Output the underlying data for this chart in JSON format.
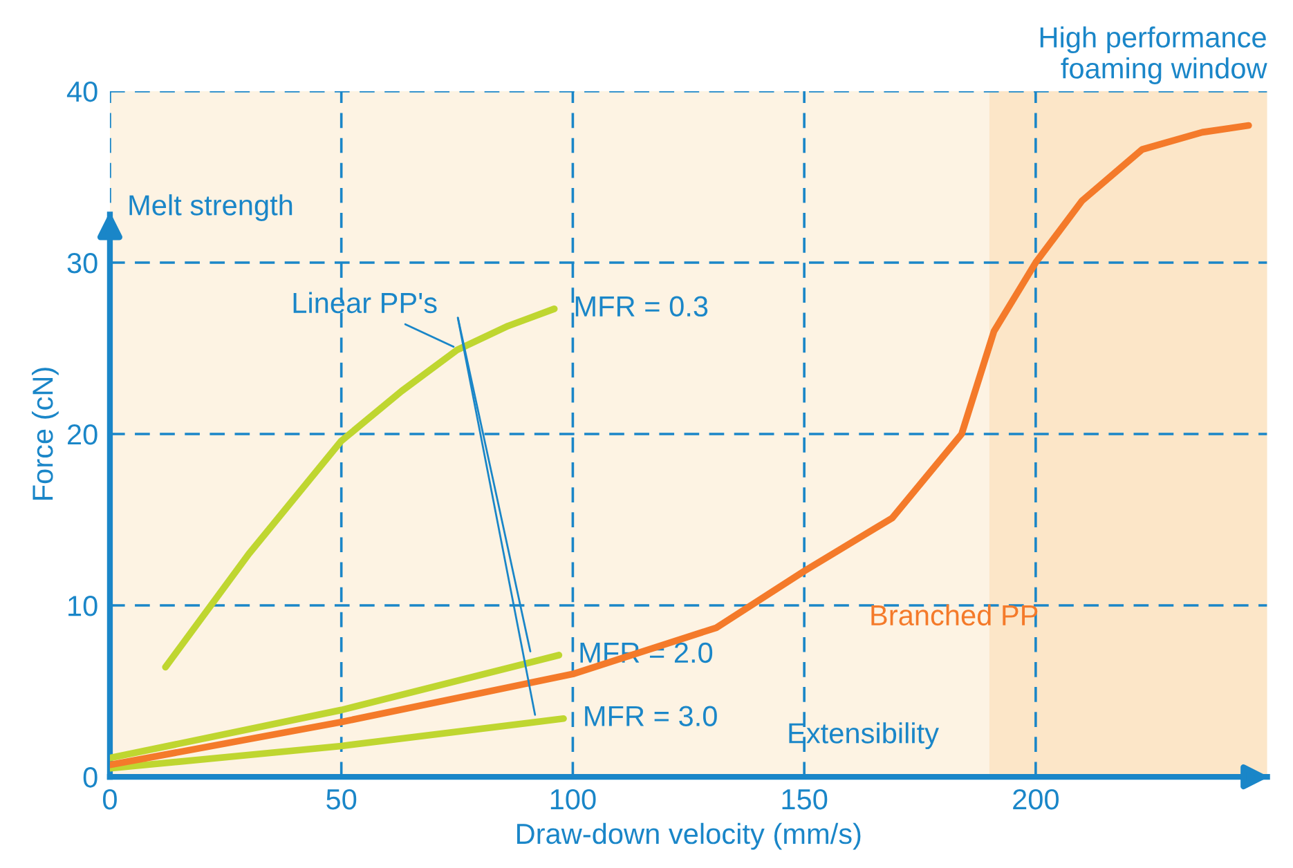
{
  "chart_data": {
    "type": "line",
    "xlabel": "Draw-down velocity (mm/s)",
    "ylabel": "Force (cN)",
    "xlim": [
      0,
      250
    ],
    "ylim": [
      0,
      40
    ],
    "xticks": [
      0,
      50,
      100,
      150,
      200
    ],
    "yticks": [
      0,
      10,
      20,
      30,
      40
    ],
    "grid": true,
    "marker": "none",
    "series": [
      {
        "name": "MFR = 0.3",
        "color": "#bfd630",
        "x": [
          12,
          30,
          50,
          63,
          75,
          86,
          96
        ],
        "values": [
          6.4,
          13,
          19.6,
          22.5,
          24.9,
          26.3,
          27.3
        ]
      },
      {
        "name": "MFR = 2.0",
        "color": "#bfd630",
        "x": [
          0,
          50,
          97
        ],
        "values": [
          1.1,
          3.9,
          7.1
        ]
      },
      {
        "name": "MFR = 3.0",
        "color": "#bfd630",
        "x": [
          0,
          50,
          98
        ],
        "values": [
          0.5,
          1.8,
          3.4
        ]
      },
      {
        "name": "Branched PP",
        "color": "#f47a2a",
        "x": [
          0,
          50,
          100,
          131,
          150,
          169,
          184,
          191,
          200,
          210,
          223,
          236,
          246
        ],
        "values": [
          0.7,
          3.2,
          6.0,
          8.7,
          12.0,
          15.1,
          20,
          26,
          30,
          33.6,
          36.6,
          37.6,
          38.0
        ]
      }
    ],
    "bands": [
      {
        "axis": "x",
        "from": 190,
        "to": 250,
        "label": "High performance\nfoaming window",
        "color": "#fce6c8"
      }
    ],
    "annotations": [
      {
        "text": "Linear PP's",
        "x": 75,
        "y": 25
      },
      "Melt strength",
      "Extensibility"
    ]
  }
}
